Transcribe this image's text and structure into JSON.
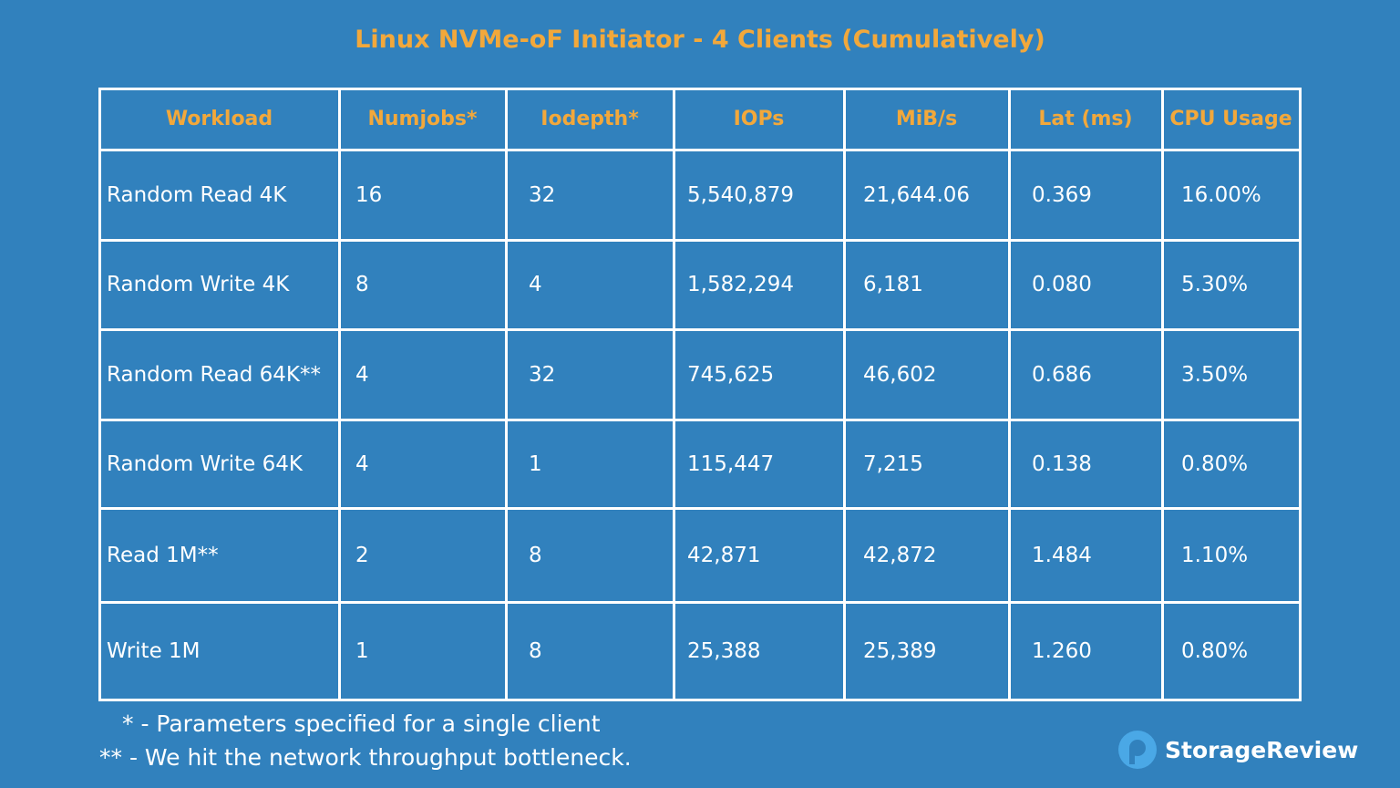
{
  "header": {
    "title": "Linux NVMe-oF Initiator - 4 Clients (Cumulatively)"
  },
  "table": {
    "headers": [
      "Workload",
      "Numjobs*",
      "Iodepth*",
      "IOPs",
      "MiB/s",
      "Lat (ms)",
      "CPU Usage"
    ],
    "rows": [
      [
        "Random Read 4K",
        "16",
        "32",
        "5,540,879",
        "21,644.06",
        "0.369",
        "16.00%"
      ],
      [
        "Random Write 4K",
        "8",
        "4",
        "1,582,294",
        "6,181",
        "0.080",
        "5.30%"
      ],
      [
        "Random Read 64K**",
        "4",
        "32",
        "745,625",
        "46,602",
        "0.686",
        "3.50%"
      ],
      [
        "Random Write 64K",
        "4",
        "1",
        "115,447",
        "7,215",
        "0.138",
        "0.80%"
      ],
      [
        "Read 1M**",
        "2",
        "8",
        "42,871",
        "42,872",
        "1.484",
        "1.10%"
      ],
      [
        "Write 1M",
        "1",
        "8",
        "25,388",
        "25,389",
        "1.260",
        "0.80%"
      ]
    ]
  },
  "footnotes": [
    "* - Parameters specified for a single client",
    "** - We hit the network throughput bottleneck."
  ],
  "logo": {
    "text": "StorageReview"
  }
}
